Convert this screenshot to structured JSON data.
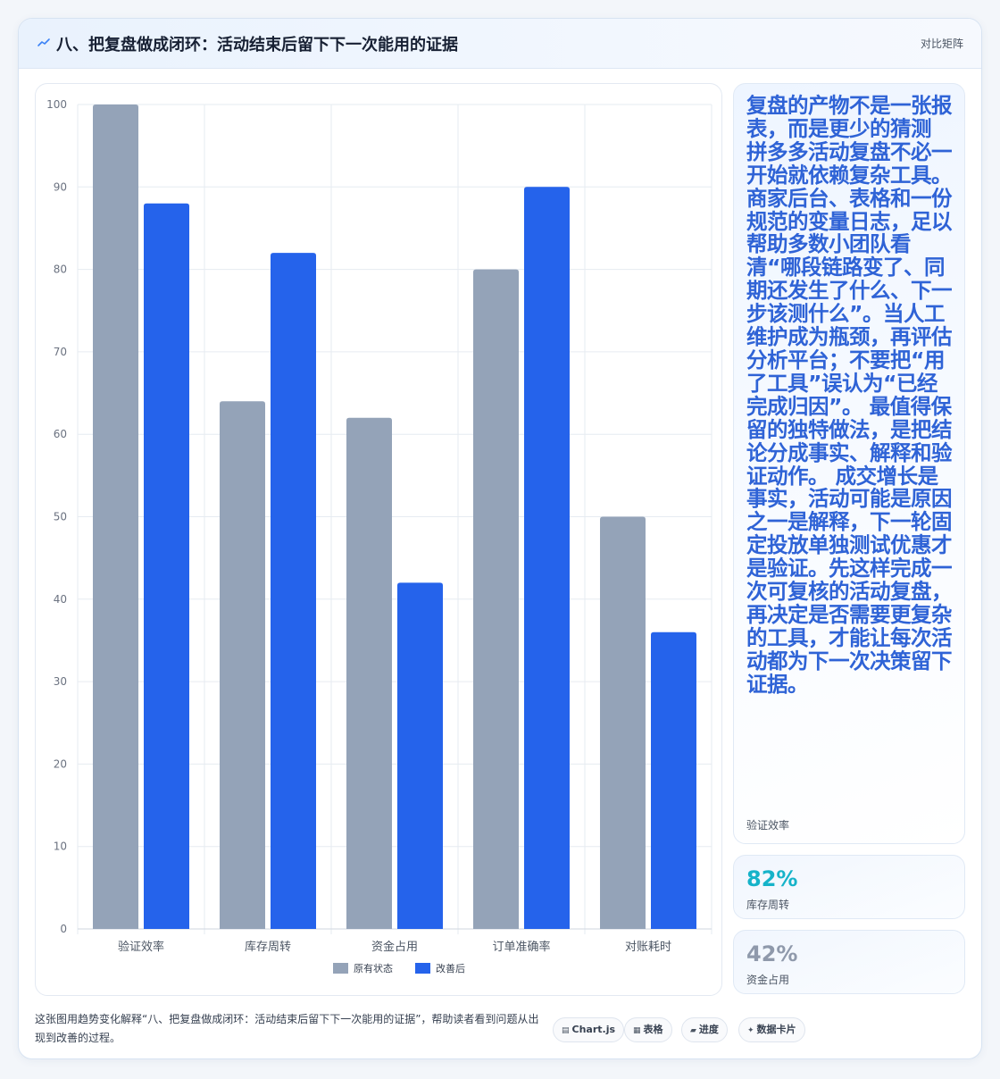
{
  "header": {
    "title": "八、把复盘做成闭环：活动结束后留下下一次能用的证据",
    "right_label": "对比矩阵"
  },
  "side_card": {
    "text": "复盘的产物不是一张报表，而是更少的猜测 拼多多活动复盘不必一开始就依赖复杂工具。商家后台、表格和一份规范的变量日志，足以帮助多数小团队看清“哪段链路变了、同期还发生了什么、下一步该测什么”。当人工维护成为瓶颈，再评估分析平台；不要把“用了工具”误认为“已经完成归因”。 最值得保留的独特做法，是把结论分成事实、解释和验证动作。 成交增长是事实，活动可能是原因之一是解释，下一轮固定投放单独测试优惠才是验证。先这样完成一次可复核的活动复盘，再决定是否需要更复杂的工具，才能让每次活动都为下一次决策留下证据。",
    "label": "验证效率"
  },
  "stats": [
    {
      "value": "82%",
      "label": "库存周转",
      "color": "#16b3c9"
    },
    {
      "value": "42%",
      "label": "资金占用",
      "color": "#8f99ab"
    }
  ],
  "footer": {
    "text": "这张图用趋势变化解释“八、把复盘做成闭环：活动结束后留下下一次能用的证据”，帮助读者看到问题从出现到改善的过程。",
    "tags": [
      {
        "icon": "chart-icon",
        "label": "Chart.js"
      },
      {
        "icon": "table-icon",
        "label": "表格"
      },
      {
        "icon": "progress-icon",
        "label": "进度"
      },
      {
        "icon": "sparkle-icon",
        "label": "数据卡片"
      }
    ]
  },
  "chart_data": {
    "type": "bar",
    "categories": [
      "验证效率",
      "库存周转",
      "资金占用",
      "订单准确率",
      "对账耗时"
    ],
    "series": [
      {
        "name": "原有状态",
        "values": [
          100,
          64,
          62,
          80,
          50
        ],
        "color": "#94a3b8"
      },
      {
        "name": "改善后",
        "values": [
          88,
          82,
          42,
          90,
          36
        ],
        "color": "#2563eb"
      }
    ],
    "ylim": [
      0,
      100
    ],
    "yticks": [
      0,
      10,
      20,
      30,
      40,
      50,
      60,
      70,
      80,
      90,
      100
    ],
    "grid": true,
    "legend": "bottom"
  }
}
